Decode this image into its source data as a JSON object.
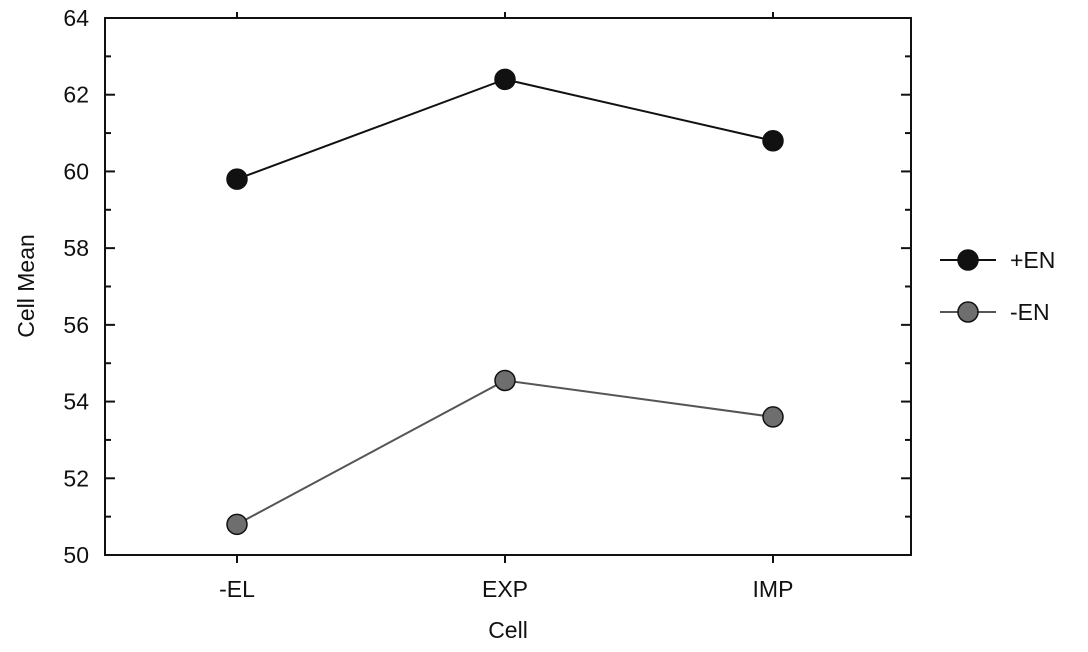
{
  "chart_data": {
    "type": "line",
    "title": "",
    "xlabel": "Cell",
    "ylabel": "Cell Mean",
    "categories": [
      "-EL",
      "EXP",
      "IMP"
    ],
    "ylim": [
      50,
      64
    ],
    "yticks": [
      "50",
      "52",
      "54",
      "56",
      "58",
      "60",
      "62",
      "64"
    ],
    "grid": false,
    "legend_position": "right",
    "series": [
      {
        "name": "+EN",
        "values": [
          59.8,
          62.4,
          60.8
        ],
        "color": "#111111"
      },
      {
        "name": "-EN",
        "values": [
          50.8,
          54.55,
          53.6
        ],
        "color": "#6e6e6e"
      }
    ]
  }
}
